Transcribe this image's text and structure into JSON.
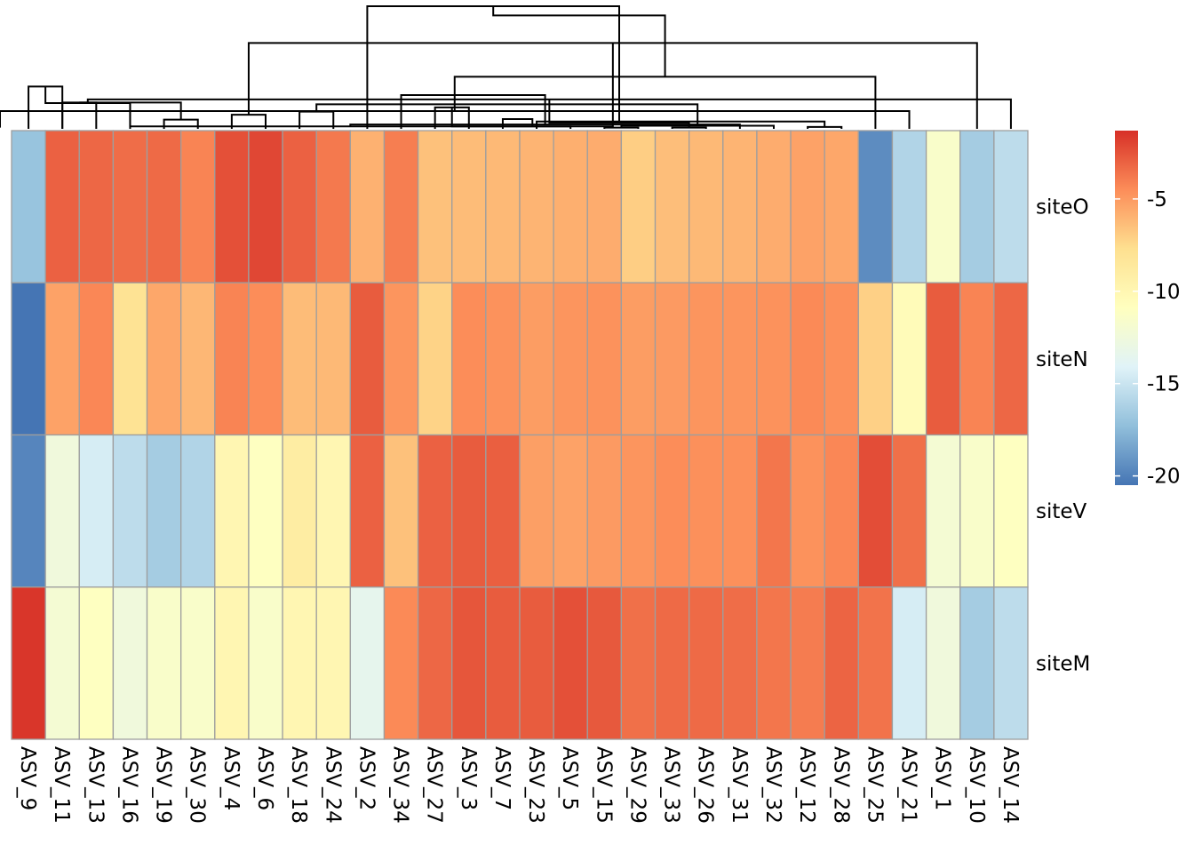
{
  "chart_data": {
    "type": "heatmap",
    "title": "",
    "xlabel": "",
    "ylabel": "",
    "columns": [
      "ASV_9",
      "ASV_11",
      "ASV_13",
      "ASV_16",
      "ASV_19",
      "ASV_30",
      "ASV_4",
      "ASV_6",
      "ASV_18",
      "ASV_24",
      "ASV_2",
      "ASV_34",
      "ASV_27",
      "ASV_3",
      "ASV_7",
      "ASV_23",
      "ASV_5",
      "ASV_15",
      "ASV_29",
      "ASV_33",
      "ASV_26",
      "ASV_31",
      "ASV_32",
      "ASV_12",
      "ASV_28",
      "ASV_25",
      "ASV_21",
      "ASV_1",
      "ASV_10",
      "ASV_14"
    ],
    "rows": [
      "siteO",
      "siteN",
      "siteV",
      "siteM"
    ],
    "values": [
      [
        -17,
        -3.0,
        -3.2,
        -3.4,
        -3.3,
        -4.2,
        -2.4,
        -2.1,
        -3.0,
        -3.8,
        -5.9,
        -4.0,
        -6.5,
        -6.3,
        -6.2,
        -6.0,
        -5.8,
        -5.7,
        -7.0,
        -6.4,
        -6.2,
        -6.0,
        -5.7,
        -5.3,
        -5.5,
        -19.5,
        -16.0,
        -11.5,
        -16.5,
        -15.5
      ],
      [
        -20.5,
        -5.3,
        -4.3,
        -8.0,
        -5.5,
        -6.1,
        -4.2,
        -4.5,
        -6.3,
        -6.2,
        -2.8,
        -4.8,
        -7.2,
        -4.5,
        -4.7,
        -5.1,
        -4.8,
        -4.7,
        -5.1,
        -5.0,
        -4.8,
        -4.8,
        -4.7,
        -4.4,
        -4.6,
        -7.1,
        -10.5,
        -2.8,
        -4.2,
        -3.2
      ],
      [
        -19.8,
        -12.5,
        -14.5,
        -15.5,
        -16.5,
        -16.0,
        -10.0,
        -11.0,
        -9.0,
        -10.0,
        -3.0,
        -6.5,
        -3.0,
        -2.8,
        -2.9,
        -5.2,
        -5.3,
        -5.0,
        -4.8,
        -4.5,
        -4.6,
        -4.6,
        -3.7,
        -4.7,
        -4.3,
        -2.3,
        -3.5,
        -12.0,
        -11.5,
        -11.0
      ],
      [
        -1.5,
        -12.0,
        -11.0,
        -12.5,
        -11.5,
        -11.5,
        -10.0,
        -11.5,
        -10.0,
        -10.0,
        -13.5,
        -4.4,
        -3.2,
        -2.6,
        -2.8,
        -2.8,
        -2.4,
        -2.7,
        -3.5,
        -3.3,
        -3.3,
        -3.4,
        -3.7,
        -3.9,
        -3.1,
        -3.6,
        -14.5,
        -12.5,
        -16.5,
        -15.5
      ]
    ],
    "color_scale": {
      "min": -20.5,
      "max": -1.3,
      "stops": [
        "#4575B4",
        "#91BFDB",
        "#E0F3F8",
        "#FFFFBF",
        "#FEE090",
        "#FC8D59",
        "#D73027"
      ]
    },
    "legend": {
      "position": "right",
      "ticks": [
        {
          "value": -5,
          "label": "-5"
        },
        {
          "value": -10,
          "label": "-10"
        },
        {
          "value": -15,
          "label": "-15"
        },
        {
          "value": -20,
          "label": "-20"
        }
      ]
    },
    "cell_border": "#9E9E9E",
    "column_dendrogram": [
      [
        0,
        1,
        69,
        2
      ],
      [
        1,
        2,
        43,
        3
      ],
      [
        4,
        5,
        15,
        2
      ],
      [
        3,
        30,
        42,
        3
      ],
      [
        6,
        7,
        23,
        2
      ],
      [
        8,
        9,
        28,
        2
      ],
      [
        31,
        32,
        43,
        4
      ],
      [
        29,
        33,
        48,
        6
      ],
      [
        28,
        34,
        140,
        9
      ],
      [
        12,
        13,
        35,
        2
      ],
      [
        17,
        18,
        2,
        2
      ],
      [
        16,
        36,
        4,
        3
      ],
      [
        19,
        20,
        2,
        2
      ],
      [
        23,
        24,
        3,
        2
      ],
      [
        38,
        39,
        4,
        2
      ],
      [
        22,
        40,
        5,
        3
      ],
      [
        21,
        41,
        7,
        4
      ],
      [
        37,
        42,
        10,
        7
      ],
      [
        15,
        43,
        12,
        8
      ],
      [
        14,
        44,
        16,
        9
      ],
      [
        35,
        45,
        40,
        11
      ],
      [
        11,
        46,
        55,
        12
      ],
      [
        10,
        47,
        200,
        13
      ],
      [
        27,
        57,
        2,
        4
      ],
      [
        26,
        53,
        29,
        3
      ],
      [
        25,
        54,
        85,
        4
      ],
      [
        52,
        55,
        185,
        17
      ],
      [
        27,
        29,
        0,
        2
      ]
    ],
    "row_dendrogram": "none"
  }
}
